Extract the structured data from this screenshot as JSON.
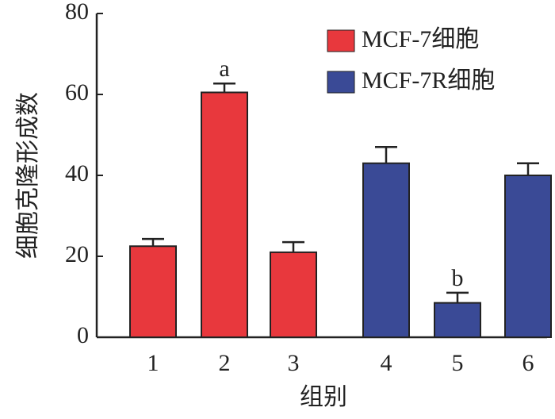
{
  "chart_data": {
    "type": "bar",
    "ylabel": "细胞克隆形成数",
    "xlabel": "组别",
    "categories": [
      "1",
      "2",
      "3",
      "4",
      "5",
      "6"
    ],
    "series": [
      {
        "name": "MCF-7细胞",
        "color": "#e8383d",
        "values": [
          22.5,
          60.5,
          21,
          null,
          null,
          null
        ],
        "errors": [
          1.8,
          2.2,
          2.5,
          null,
          null,
          null
        ]
      },
      {
        "name": "MCF-7R细胞",
        "color": "#3a4a96",
        "values": [
          null,
          null,
          null,
          43,
          8.5,
          40
        ],
        "errors": [
          null,
          null,
          null,
          4,
          2.5,
          3
        ]
      }
    ],
    "annotations": [
      {
        "text": "a",
        "category": "2"
      },
      {
        "text": "b",
        "category": "5"
      }
    ],
    "ylim": [
      0,
      80
    ],
    "yticks": [
      0,
      20,
      40,
      60,
      80
    ],
    "legend": "upper right"
  }
}
